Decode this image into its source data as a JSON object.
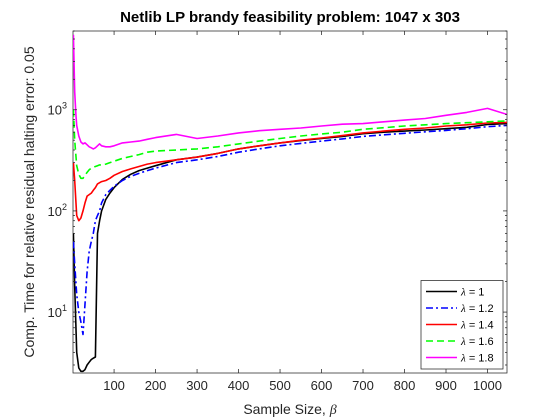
{
  "chart_data": {
    "type": "line",
    "title": "Netlib LP brandy feasibility problem: 1047 x 303",
    "xlabel_text": "Sample Size, ",
    "xlabel_symbol": "β",
    "ylabel": "Comp. Time for relative residual halting error: 0.05",
    "xlim": [
      1,
      1047
    ],
    "ylim": [
      2.5,
      6000
    ],
    "yscale": "log",
    "grid": false,
    "legend_position": "bottom-right",
    "x_ticks": [
      100,
      200,
      300,
      400,
      500,
      600,
      700,
      800,
      900,
      1000
    ],
    "x_tick_labels": [
      "100",
      "200",
      "300",
      "400",
      "500",
      "600",
      "700",
      "800",
      "900",
      "1000"
    ],
    "y_ticks": [
      {
        "base": "10",
        "exp": "1",
        "value": 10
      },
      {
        "base": "10",
        "exp": "2",
        "value": 100
      },
      {
        "base": "10",
        "exp": "3",
        "value": 1000
      }
    ],
    "series": [
      {
        "name": "λ = 1",
        "legend_symbol": "λ",
        "legend_value": " = 1",
        "color": "#000000",
        "dash": "solid",
        "x": [
          2,
          5,
          10,
          15,
          20,
          25,
          30,
          35,
          40,
          45,
          50,
          55,
          60,
          65,
          70,
          80,
          90,
          100,
          120,
          140,
          160,
          180,
          200,
          250,
          300,
          350,
          400,
          450,
          500,
          550,
          600,
          650,
          700,
          750,
          800,
          850,
          900,
          950,
          1000,
          1047
        ],
        "y": [
          60,
          18,
          4.0,
          2.8,
          2.6,
          2.6,
          2.7,
          3.0,
          3.2,
          3.4,
          3.5,
          3.6,
          60,
          80,
          100,
          130,
          150,
          170,
          205,
          230,
          250,
          265,
          280,
          320,
          340,
          370,
          410,
          440,
          470,
          495,
          520,
          545,
          580,
          600,
          615,
          630,
          650,
          670,
          715,
          730
        ]
      },
      {
        "name": "λ = 1.2",
        "legend_symbol": "λ",
        "legend_value": " = 1.2",
        "color": "#0000ff",
        "dash": "dashdot",
        "x": [
          2,
          5,
          10,
          15,
          20,
          25,
          30,
          35,
          40,
          45,
          50,
          55,
          60,
          65,
          70,
          80,
          90,
          100,
          120,
          140,
          160,
          180,
          200,
          250,
          300,
          350,
          400,
          450,
          500,
          550,
          600,
          650,
          700,
          750,
          800,
          850,
          900,
          950,
          1000,
          1047
        ],
        "y": [
          50,
          30,
          15,
          10,
          8,
          6,
          12,
          25,
          40,
          50,
          60,
          80,
          90,
          100,
          120,
          145,
          160,
          175,
          200,
          220,
          235,
          250,
          265,
          300,
          320,
          345,
          380,
          410,
          440,
          465,
          490,
          515,
          545,
          565,
          585,
          605,
          625,
          650,
          680,
          700
        ]
      },
      {
        "name": "λ = 1.4",
        "legend_symbol": "λ",
        "legend_value": " = 1.4",
        "color": "#ff0000",
        "dash": "solid",
        "x": [
          2,
          5,
          10,
          15,
          20,
          25,
          30,
          35,
          40,
          45,
          50,
          55,
          60,
          65,
          70,
          80,
          90,
          100,
          120,
          140,
          160,
          180,
          200,
          250,
          300,
          350,
          400,
          450,
          500,
          550,
          600,
          650,
          700,
          750,
          800,
          850,
          900,
          950,
          1000,
          1047
        ],
        "y": [
          300,
          200,
          90,
          80,
          85,
          100,
          120,
          140,
          145,
          150,
          160,
          170,
          185,
          190,
          195,
          200,
          210,
          225,
          245,
          260,
          275,
          290,
          300,
          320,
          340,
          370,
          410,
          440,
          470,
          500,
          525,
          555,
          590,
          615,
          640,
          660,
          690,
          710,
          740,
          750
        ]
      },
      {
        "name": "λ = 1.6",
        "legend_symbol": "λ",
        "legend_value": " = 1.6",
        "color": "#00ff00",
        "dash": "dashed",
        "x": [
          2,
          5,
          10,
          15,
          20,
          25,
          30,
          35,
          40,
          45,
          50,
          55,
          60,
          65,
          70,
          80,
          90,
          100,
          120,
          140,
          160,
          180,
          200,
          250,
          300,
          350,
          400,
          450,
          500,
          550,
          600,
          650,
          700,
          750,
          800,
          850,
          900,
          950,
          1000,
          1047
        ],
        "y": [
          1000,
          500,
          280,
          230,
          210,
          210,
          225,
          240,
          255,
          265,
          270,
          275,
          280,
          285,
          285,
          290,
          300,
          310,
          330,
          345,
          360,
          380,
          390,
          400,
          410,
          430,
          460,
          490,
          520,
          550,
          575,
          600,
          640,
          665,
          690,
          710,
          730,
          745,
          760,
          775
        ]
      },
      {
        "name": "λ = 1.8",
        "legend_symbol": "λ",
        "legend_value": " = 1.8",
        "color": "#ff00ff",
        "dash": "solid",
        "x": [
          2,
          5,
          8,
          10,
          15,
          20,
          25,
          30,
          35,
          40,
          45,
          50,
          55,
          60,
          65,
          70,
          80,
          90,
          100,
          120,
          140,
          160,
          180,
          200,
          250,
          300,
          350,
          400,
          450,
          500,
          550,
          600,
          650,
          700,
          750,
          800,
          850,
          900,
          950,
          1000,
          1047
        ],
        "y": [
          5500,
          1500,
          900,
          700,
          550,
          480,
          460,
          470,
          450,
          430,
          420,
          410,
          420,
          440,
          460,
          440,
          430,
          430,
          440,
          470,
          480,
          490,
          510,
          530,
          570,
          520,
          550,
          590,
          620,
          640,
          660,
          690,
          720,
          730,
          760,
          790,
          820,
          880,
          940,
          1030,
          900
        ]
      }
    ]
  }
}
